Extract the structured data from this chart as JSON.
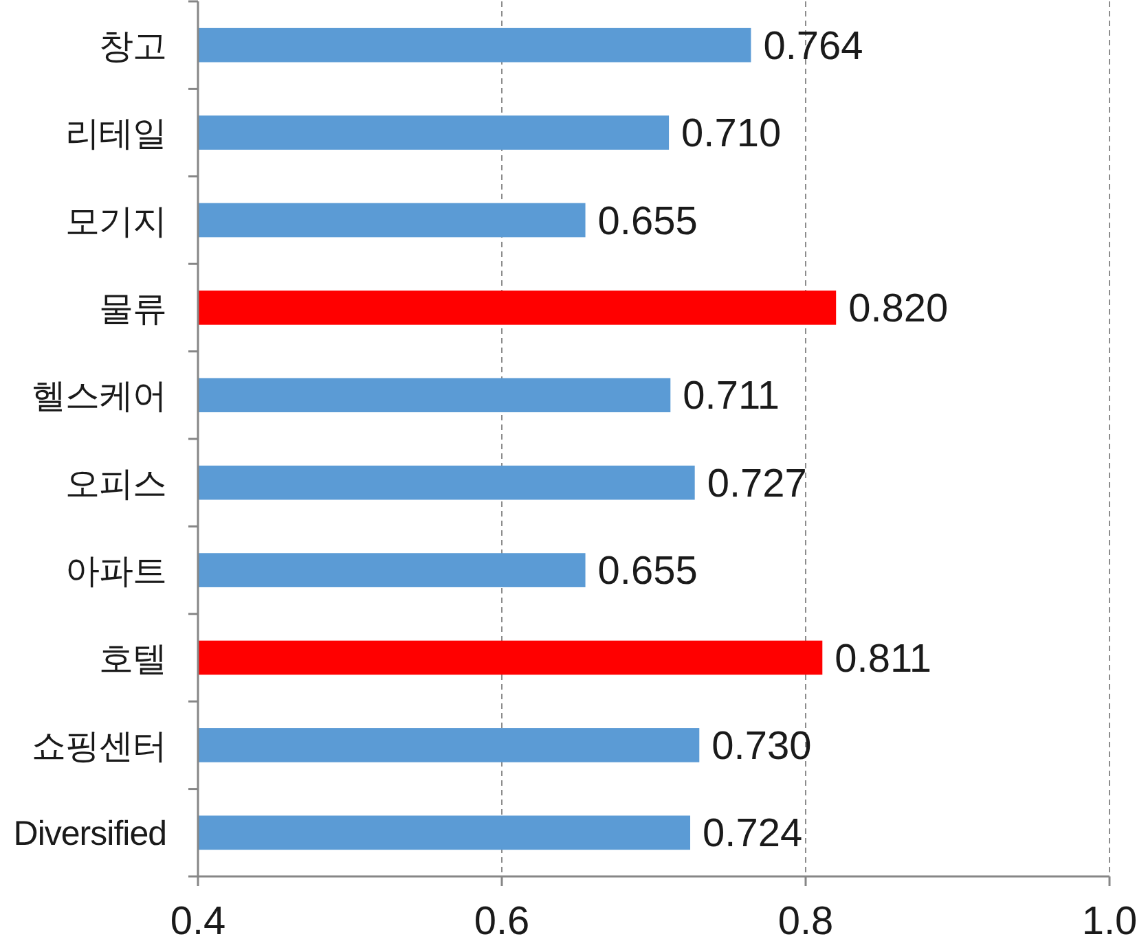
{
  "chart_data": {
    "type": "bar",
    "orientation": "horizontal",
    "categories": [
      "창고",
      "리테일",
      "모기지",
      "물류",
      "헬스케어",
      "오피스",
      "아파트",
      "호텔",
      "쇼핑센터",
      "Diversified"
    ],
    "values": [
      0.764,
      0.71,
      0.655,
      0.82,
      0.711,
      0.727,
      0.655,
      0.811,
      0.73,
      0.724
    ],
    "colors": [
      "#5b9bd5",
      "#5b9bd5",
      "#5b9bd5",
      "#ff0000",
      "#5b9bd5",
      "#5b9bd5",
      "#5b9bd5",
      "#ff0000",
      "#5b9bd5",
      "#5b9bd5"
    ],
    "value_labels": [
      "0.764",
      "0.710",
      "0.655",
      "0.820",
      "0.711",
      "0.727",
      "0.655",
      "0.811",
      "0.730",
      "0.724"
    ],
    "xlim": [
      0.4,
      1.0
    ],
    "xticks": [
      0.4,
      0.6,
      0.8,
      {
        "value": 1,
        "label": "1.0"
      }
    ],
    "grid": "x"
  }
}
